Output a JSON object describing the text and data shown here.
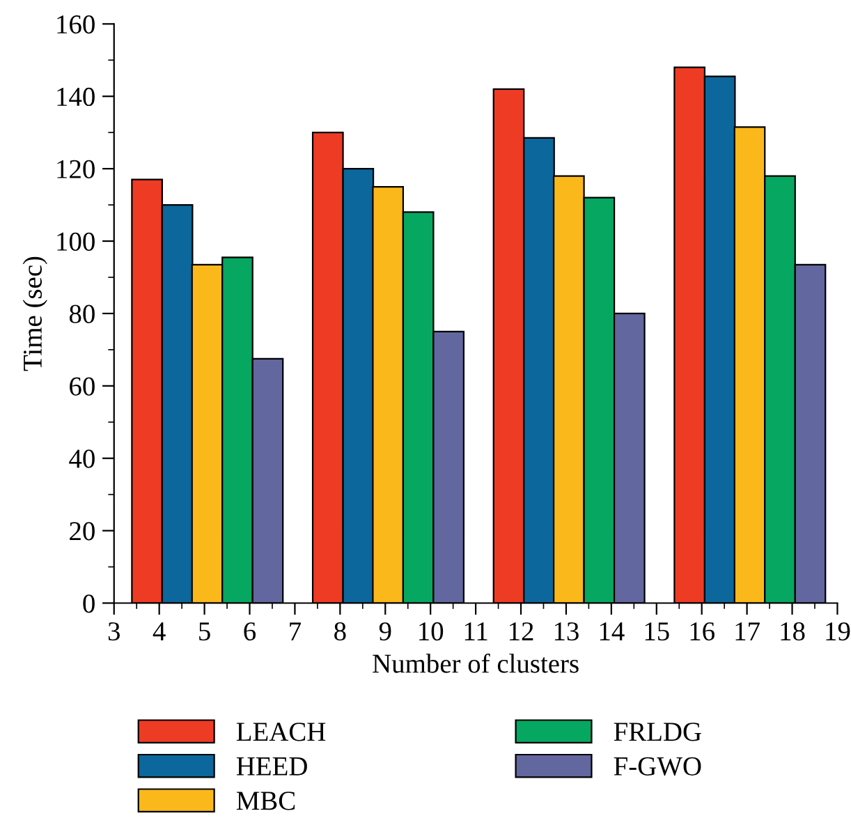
{
  "chart_data": {
    "type": "bar",
    "xlabel": "Number of clusters",
    "ylabel": "Time (sec)",
    "xlim": [
      3,
      19
    ],
    "xticks": [
      3,
      4,
      5,
      6,
      7,
      8,
      9,
      10,
      11,
      12,
      13,
      14,
      15,
      16,
      17,
      18,
      19
    ],
    "ylim": [
      0,
      160
    ],
    "yticks": [
      0,
      20,
      40,
      60,
      80,
      100,
      120,
      140,
      160
    ],
    "grid": false,
    "legend": "bottom",
    "series": [
      {
        "name": "LEACH",
        "color": "#ee3b24",
        "x": [
          3.73,
          7.73,
          11.73,
          15.73
        ],
        "values": [
          117,
          130,
          142,
          148
        ]
      },
      {
        "name": "HEED",
        "color": "#0b679c",
        "x": [
          4.4,
          8.4,
          12.4,
          16.4
        ],
        "values": [
          110,
          120,
          128.5,
          145.5
        ]
      },
      {
        "name": "MBC",
        "color": "#fbb81a",
        "x": [
          5.06,
          9.06,
          13.06,
          17.06
        ],
        "values": [
          93.5,
          115,
          118,
          131.5
        ]
      },
      {
        "name": "FRLDG",
        "color": "#06a760",
        "x": [
          5.73,
          9.73,
          13.73,
          17.73
        ],
        "values": [
          95.5,
          108,
          112,
          118
        ]
      },
      {
        "name": "F-GWO",
        "color": "#62679f",
        "x": [
          6.4,
          10.4,
          14.4,
          18.4
        ],
        "values": [
          67.5,
          75,
          80,
          93.5
        ]
      }
    ]
  }
}
